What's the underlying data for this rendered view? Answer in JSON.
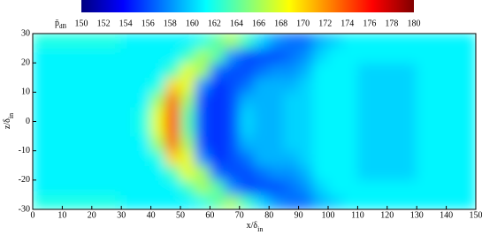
{
  "chart_data": {
    "type": "heatmap",
    "colormap": "jet",
    "xlabel": {
      "main": "x/δ",
      "sub": "in"
    },
    "ylabel": {
      "main": "z/δ",
      "sub": "in"
    },
    "colorbar_label": {
      "main": "p̄",
      "sub": "dB"
    },
    "clim": [
      150,
      180
    ],
    "cticks": [
      150,
      152,
      154,
      156,
      158,
      160,
      162,
      164,
      166,
      168,
      170,
      172,
      174,
      176,
      178,
      180
    ],
    "xlim": [
      0,
      150
    ],
    "xticks": [
      0,
      10,
      20,
      30,
      40,
      50,
      60,
      70,
      80,
      90,
      100,
      110,
      120,
      130,
      140,
      150
    ],
    "ylim": [
      -30,
      30
    ],
    "yticks": [
      -30,
      -20,
      -10,
      0,
      10,
      20,
      30
    ],
    "x": [
      2.5,
      7.5,
      12.5,
      17.5,
      22.5,
      27.5,
      32.5,
      37.5,
      42.5,
      47.5,
      52.5,
      57.5,
      62.5,
      67.5,
      72.5,
      77.5,
      82.5,
      87.5,
      92.5,
      97.5,
      102.5,
      107.5,
      112.5,
      117.5,
      122.5,
      127.5,
      132.5,
      137.5,
      142.5,
      147.5
    ],
    "y": [
      -27.5,
      -22.5,
      -17.5,
      -12.5,
      -7.5,
      -2.5,
      2.5,
      7.5,
      12.5,
      17.5,
      22.5,
      27.5
    ],
    "values": [
      [
        162,
        162,
        162,
        162,
        162,
        162,
        161,
        161,
        161,
        161,
        161,
        162,
        164,
        166,
        163,
        160,
        158,
        157,
        157,
        159,
        160,
        161,
        161,
        161,
        161,
        161,
        161,
        161,
        161,
        161
      ],
      [
        161,
        161,
        161,
        161,
        161,
        161,
        161,
        161,
        161,
        161,
        163,
        166,
        164,
        158,
        156,
        156,
        156,
        157,
        158,
        160,
        161,
        161,
        161,
        161,
        161,
        161,
        161,
        161,
        161,
        161
      ],
      [
        161,
        161,
        161,
        161,
        161,
        161,
        161,
        161,
        161,
        163,
        168,
        166,
        157,
        156,
        156,
        157,
        158,
        158,
        159,
        161,
        161,
        161,
        160,
        160,
        160,
        160,
        161,
        161,
        161,
        161
      ],
      [
        161,
        161,
        161,
        161,
        161,
        161,
        161,
        161,
        162,
        170,
        168,
        158,
        155,
        156,
        157,
        159,
        159,
        159,
        160,
        161,
        161,
        161,
        160,
        160,
        160,
        160,
        161,
        161,
        161,
        161
      ],
      [
        161,
        161,
        161,
        161,
        161,
        161,
        161,
        161,
        166,
        173,
        166,
        156,
        155,
        156,
        159,
        159,
        159,
        160,
        160,
        161,
        161,
        161,
        160,
        160,
        160,
        160,
        161,
        161,
        161,
        161
      ],
      [
        161,
        161,
        161,
        161,
        161,
        161,
        161,
        162,
        168,
        174,
        164,
        156,
        155,
        156,
        160,
        159,
        159,
        160,
        160,
        161,
        161,
        161,
        160,
        160,
        160,
        160,
        161,
        161,
        161,
        161
      ],
      [
        161,
        161,
        161,
        161,
        161,
        161,
        161,
        162,
        168,
        174,
        164,
        156,
        155,
        156,
        160,
        159,
        159,
        160,
        160,
        161,
        161,
        161,
        160,
        160,
        160,
        160,
        161,
        161,
        161,
        161
      ],
      [
        161,
        161,
        161,
        161,
        161,
        161,
        161,
        161,
        166,
        173,
        166,
        156,
        155,
        156,
        159,
        159,
        159,
        160,
        160,
        161,
        161,
        161,
        160,
        160,
        160,
        160,
        161,
        161,
        161,
        161
      ],
      [
        161,
        161,
        161,
        161,
        161,
        161,
        161,
        161,
        162,
        170,
        168,
        158,
        155,
        156,
        157,
        159,
        159,
        159,
        160,
        161,
        161,
        161,
        160,
        160,
        160,
        160,
        161,
        161,
        161,
        161
      ],
      [
        161,
        161,
        161,
        161,
        161,
        161,
        161,
        161,
        161,
        163,
        168,
        166,
        157,
        156,
        156,
        157,
        158,
        158,
        159,
        161,
        161,
        161,
        160,
        160,
        160,
        160,
        161,
        161,
        161,
        161
      ],
      [
        161,
        161,
        161,
        161,
        161,
        161,
        161,
        161,
        161,
        161,
        163,
        166,
        164,
        158,
        156,
        156,
        156,
        157,
        158,
        160,
        161,
        161,
        161,
        161,
        161,
        161,
        161,
        161,
        161,
        161
      ],
      [
        162,
        162,
        162,
        162,
        162,
        162,
        161,
        161,
        161,
        161,
        161,
        162,
        164,
        166,
        163,
        160,
        158,
        157,
        157,
        159,
        160,
        161,
        161,
        161,
        161,
        161,
        161,
        161,
        161,
        161
      ]
    ]
  }
}
